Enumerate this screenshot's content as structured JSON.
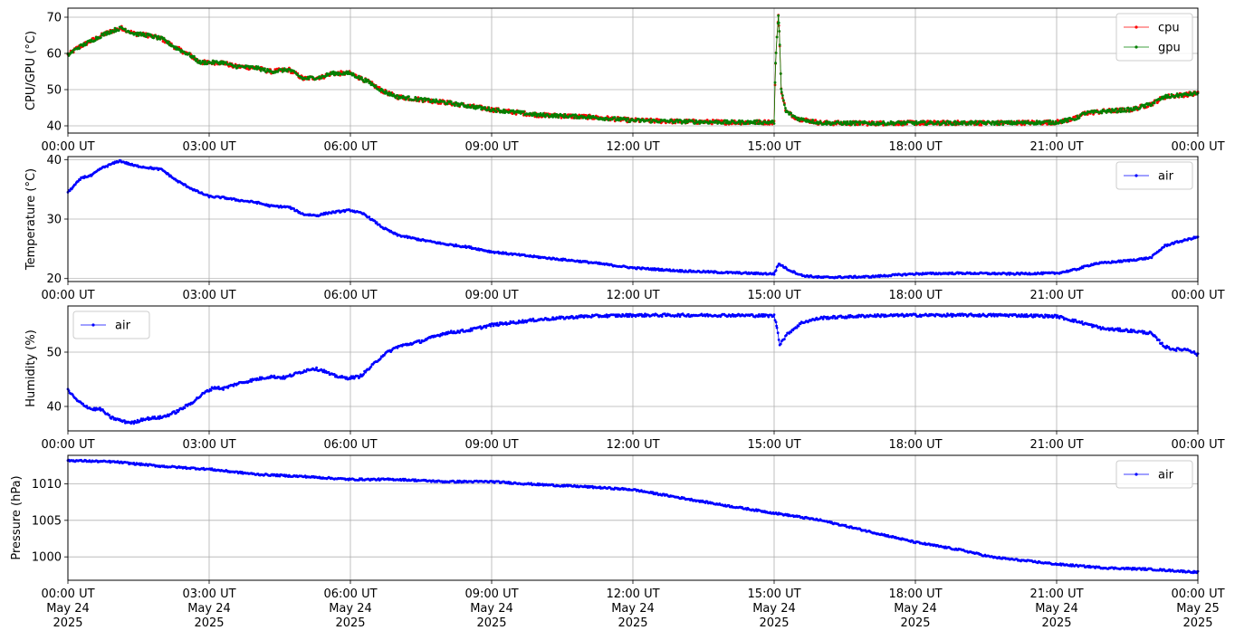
{
  "chart_data": [
    {
      "type": "line",
      "ylabel": "CPU/GPU (°C)",
      "xlabel": "",
      "xlim": [
        0,
        24
      ],
      "ylim": [
        38,
        72.5
      ],
      "yticks": [
        40,
        50,
        60,
        70
      ],
      "xtick_labels": [
        "00:00 UT",
        "03:00 UT",
        "06:00 UT",
        "09:00 UT",
        "12:00 UT",
        "15:00 UT",
        "18:00 UT",
        "21:00 UT",
        "00:00 UT"
      ],
      "grid": true,
      "legend_position": "top-right",
      "series": [
        {
          "name": "cpu",
          "color": "#ff0000",
          "noise": 0.6,
          "points": [
            [
              0,
              59.5
            ],
            [
              0.2,
              61.5
            ],
            [
              0.5,
              63.5
            ],
            [
              0.8,
              65.5
            ],
            [
              1.0,
              66.5
            ],
            [
              1.15,
              67
            ],
            [
              1.4,
              65.5
            ],
            [
              1.7,
              65
            ],
            [
              2.0,
              64
            ],
            [
              2.3,
              61.5
            ],
            [
              2.6,
              59.5
            ],
            [
              2.8,
              57.5
            ],
            [
              3.3,
              57.5
            ],
            [
              3.5,
              56.5
            ],
            [
              4.0,
              56
            ],
            [
              4.3,
              55
            ],
            [
              4.7,
              55.5
            ],
            [
              5.0,
              53
            ],
            [
              5.4,
              53.5
            ],
            [
              5.6,
              54.5
            ],
            [
              6.0,
              54.5
            ],
            [
              6.4,
              52
            ],
            [
              6.7,
              49.5
            ],
            [
              7.0,
              48
            ],
            [
              8.0,
              46.5
            ],
            [
              9.0,
              44.5
            ],
            [
              10.0,
              43
            ],
            [
              11.0,
              42.5
            ],
            [
              12.0,
              41.5
            ],
            [
              13.0,
              41.2
            ],
            [
              14.0,
              41
            ],
            [
              15.0,
              41
            ],
            [
              15.03,
              57
            ],
            [
              15.06,
              65
            ],
            [
              15.09,
              70.5
            ],
            [
              15.11,
              66
            ],
            [
              15.15,
              50
            ],
            [
              15.25,
              44
            ],
            [
              15.5,
              42
            ],
            [
              16.0,
              40.8
            ],
            [
              17.0,
              40.7
            ],
            [
              18.0,
              40.8
            ],
            [
              19.0,
              40.8
            ],
            [
              20.0,
              40.8
            ],
            [
              21.0,
              41
            ],
            [
              21.4,
              42
            ],
            [
              21.6,
              43.5
            ],
            [
              22.0,
              44
            ],
            [
              22.6,
              44.5
            ],
            [
              23.0,
              46
            ],
            [
              23.3,
              48
            ],
            [
              24.0,
              49
            ]
          ]
        },
        {
          "name": "gpu",
          "color": "#008000",
          "noise": 0.5,
          "points": [
            [
              0,
              59.5
            ],
            [
              0.2,
              61.5
            ],
            [
              0.5,
              63.5
            ],
            [
              0.8,
              65.5
            ],
            [
              1.0,
              66.5
            ],
            [
              1.15,
              67
            ],
            [
              1.4,
              65.5
            ],
            [
              1.7,
              65
            ],
            [
              2.0,
              64
            ],
            [
              2.3,
              61.5
            ],
            [
              2.6,
              59.5
            ],
            [
              2.8,
              57.5
            ],
            [
              3.3,
              57.5
            ],
            [
              3.5,
              56.5
            ],
            [
              4.0,
              56
            ],
            [
              4.3,
              55
            ],
            [
              4.7,
              55.5
            ],
            [
              5.0,
              53
            ],
            [
              5.4,
              53.5
            ],
            [
              5.6,
              54.5
            ],
            [
              6.0,
              54.5
            ],
            [
              6.4,
              52
            ],
            [
              6.7,
              49.5
            ],
            [
              7.0,
              48
            ],
            [
              8.0,
              46.5
            ],
            [
              9.0,
              44.5
            ],
            [
              10.0,
              43
            ],
            [
              11.0,
              42.5
            ],
            [
              12.0,
              41.5
            ],
            [
              13.0,
              41.2
            ],
            [
              14.0,
              41
            ],
            [
              15.0,
              41
            ],
            [
              15.03,
              57
            ],
            [
              15.06,
              65
            ],
            [
              15.09,
              70.5
            ],
            [
              15.11,
              66
            ],
            [
              15.15,
              50
            ],
            [
              15.25,
              44
            ],
            [
              15.5,
              42
            ],
            [
              16.0,
              40.8
            ],
            [
              17.0,
              40.7
            ],
            [
              18.0,
              40.8
            ],
            [
              19.0,
              40.8
            ],
            [
              20.0,
              40.8
            ],
            [
              21.0,
              41
            ],
            [
              21.4,
              42
            ],
            [
              21.6,
              43.5
            ],
            [
              22.0,
              44
            ],
            [
              22.6,
              44.5
            ],
            [
              23.0,
              46
            ],
            [
              23.3,
              48
            ],
            [
              24.0,
              49
            ]
          ]
        }
      ]
    },
    {
      "type": "line",
      "ylabel": "Temperature (°C)",
      "xlabel": "",
      "xlim": [
        0,
        24
      ],
      "ylim": [
        19.5,
        40.5
      ],
      "yticks": [
        20,
        30,
        40
      ],
      "xtick_labels": [
        "00:00 UT",
        "03:00 UT",
        "06:00 UT",
        "09:00 UT",
        "12:00 UT",
        "15:00 UT",
        "18:00 UT",
        "21:00 UT",
        "00:00 UT"
      ],
      "grid": true,
      "legend_position": "top-right",
      "series": [
        {
          "name": "air",
          "color": "#0000ff",
          "noise": 0.15,
          "points": [
            [
              0,
              34.5
            ],
            [
              0.3,
              37
            ],
            [
              0.5,
              37.3
            ],
            [
              0.7,
              38.5
            ],
            [
              1.1,
              39.8
            ],
            [
              1.4,
              39
            ],
            [
              2.0,
              38.3
            ],
            [
              2.3,
              36.5
            ],
            [
              2.7,
              34.8
            ],
            [
              3.0,
              33.8
            ],
            [
              3.3,
              33.6
            ],
            [
              3.6,
              33.2
            ],
            [
              4.0,
              32.8
            ],
            [
              4.3,
              32.2
            ],
            [
              4.7,
              32
            ],
            [
              5.0,
              30.8
            ],
            [
              5.3,
              30.6
            ],
            [
              5.5,
              31
            ],
            [
              6.0,
              31.5
            ],
            [
              6.3,
              30.8
            ],
            [
              6.7,
              28.5
            ],
            [
              7.0,
              27.3
            ],
            [
              7.5,
              26.5
            ],
            [
              8.0,
              25.8
            ],
            [
              8.5,
              25.3
            ],
            [
              9.0,
              24.5
            ],
            [
              10.0,
              23.6
            ],
            [
              11.0,
              22.8
            ],
            [
              12.0,
              21.8
            ],
            [
              13.0,
              21.3
            ],
            [
              14.0,
              21
            ],
            [
              14.9,
              20.8
            ],
            [
              15.0,
              20.8
            ],
            [
              15.1,
              22.5
            ],
            [
              15.3,
              21.5
            ],
            [
              15.6,
              20.5
            ],
            [
              16.0,
              20.2
            ],
            [
              17.0,
              20.3
            ],
            [
              18.0,
              20.8
            ],
            [
              19.0,
              20.9
            ],
            [
              20.0,
              20.8
            ],
            [
              21.0,
              20.9
            ],
            [
              21.4,
              21.5
            ],
            [
              21.8,
              22.5
            ],
            [
              22.5,
              23
            ],
            [
              23.0,
              23.5
            ],
            [
              23.3,
              25.5
            ],
            [
              23.5,
              26
            ],
            [
              24.0,
              27
            ]
          ]
        }
      ]
    },
    {
      "type": "line",
      "ylabel": "Humidity (%)",
      "xlabel": "",
      "xlim": [
        0,
        24
      ],
      "ylim": [
        35.5,
        58.5
      ],
      "yticks": [
        40,
        50
      ],
      "xtick_labels": [
        "00:00 UT",
        "03:00 UT",
        "06:00 UT",
        "09:00 UT",
        "12:00 UT",
        "15:00 UT",
        "18:00 UT",
        "21:00 UT",
        "00:00 UT"
      ],
      "grid": true,
      "legend_position": "top-left",
      "series": [
        {
          "name": "air",
          "color": "#0000ff",
          "noise": 0.25,
          "points": [
            [
              0,
              43
            ],
            [
              0.2,
              41
            ],
            [
              0.5,
              39.5
            ],
            [
              0.7,
              39.5
            ],
            [
              0.9,
              38
            ],
            [
              1.2,
              37.2
            ],
            [
              1.4,
              37
            ],
            [
              1.6,
              37.7
            ],
            [
              2.0,
              38
            ],
            [
              2.3,
              39
            ],
            [
              2.6,
              40.5
            ],
            [
              2.9,
              42.5
            ],
            [
              3.1,
              43.5
            ],
            [
              3.3,
              43.3
            ],
            [
              3.6,
              44.2
            ],
            [
              4.0,
              45
            ],
            [
              4.3,
              45.5
            ],
            [
              4.6,
              45.3
            ],
            [
              5.0,
              46.5
            ],
            [
              5.2,
              47
            ],
            [
              5.4,
              46.7
            ],
            [
              5.6,
              45.8
            ],
            [
              5.9,
              45.2
            ],
            [
              6.2,
              45.5
            ],
            [
              6.4,
              47
            ],
            [
              6.7,
              49.5
            ],
            [
              7.0,
              51
            ],
            [
              7.5,
              52
            ],
            [
              8.0,
              53.5
            ],
            [
              8.5,
              54
            ],
            [
              9.0,
              55
            ],
            [
              10.0,
              56
            ],
            [
              11.0,
              56.6
            ],
            [
              12.0,
              56.8
            ],
            [
              13.0,
              56.8
            ],
            [
              14.0,
              56.8
            ],
            [
              15.0,
              56.7
            ],
            [
              15.05,
              55
            ],
            [
              15.12,
              51.5
            ],
            [
              15.3,
              53.5
            ],
            [
              15.6,
              55.5
            ],
            [
              16.0,
              56.3
            ],
            [
              17.0,
              56.7
            ],
            [
              18.0,
              56.8
            ],
            [
              19.0,
              56.8
            ],
            [
              20.0,
              56.8
            ],
            [
              21.0,
              56.6
            ],
            [
              21.5,
              55.5
            ],
            [
              22.0,
              54.3
            ],
            [
              22.5,
              54
            ],
            [
              23.0,
              53.5
            ],
            [
              23.3,
              51
            ],
            [
              23.5,
              50.5
            ],
            [
              23.8,
              50.5
            ],
            [
              24.0,
              49.5
            ]
          ]
        }
      ]
    },
    {
      "type": "line",
      "ylabel": "Pressure (hPa)",
      "xlabel": "",
      "xlim": [
        0,
        24
      ],
      "ylim": [
        996.8,
        1013.9
      ],
      "yticks": [
        1000,
        1005,
        1010
      ],
      "xtick_labels": [
        "00:00 UT\nMay 24\n2025",
        "03:00 UT\nMay 24\n2025",
        "06:00 UT\nMay 24\n2025",
        "09:00 UT\nMay 24\n2025",
        "12:00 UT\nMay 24\n2025",
        "15:00 UT\nMay 24\n2025",
        "18:00 UT\nMay 24\n2025",
        "21:00 UT\nMay 24\n2025",
        "00:00 UT\nMay 25\n2025"
      ],
      "grid": true,
      "legend_position": "top-right",
      "series": [
        {
          "name": "air",
          "color": "#0000ff",
          "noise": 0.12,
          "points": [
            [
              0,
              1013.2
            ],
            [
              1.0,
              1013
            ],
            [
              2.0,
              1012.4
            ],
            [
              3.0,
              1012
            ],
            [
              4.0,
              1011.3
            ],
            [
              5.0,
              1011
            ],
            [
              6.0,
              1010.6
            ],
            [
              7.0,
              1010.6
            ],
            [
              8.0,
              1010.3
            ],
            [
              9.0,
              1010.3
            ],
            [
              10.0,
              1009.9
            ],
            [
              11.0,
              1009.6
            ],
            [
              12.0,
              1009.2
            ],
            [
              13.0,
              1008.1
            ],
            [
              14.0,
              1007
            ],
            [
              15.0,
              1006
            ],
            [
              16.0,
              1005
            ],
            [
              17.0,
              1003.5
            ],
            [
              18.0,
              1002
            ],
            [
              19.0,
              1000.9
            ],
            [
              19.6,
              1000
            ],
            [
              20.0,
              999.7
            ],
            [
              21.0,
              999
            ],
            [
              22.0,
              998.5
            ],
            [
              23.0,
              998.3
            ],
            [
              24.0,
              997.9
            ]
          ]
        }
      ]
    }
  ]
}
